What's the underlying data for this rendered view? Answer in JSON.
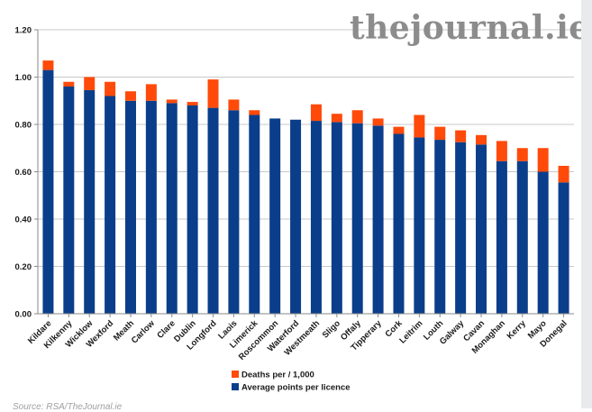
{
  "watermark": "thejournal.ie",
  "source": "Source: RSA/TheJournal.ie",
  "colors": {
    "average": "#0a3e8a",
    "deaths": "#ff4a0a",
    "grid": "#c9c9c9",
    "axis": "#8a8a8a"
  },
  "chart_data": {
    "type": "bar",
    "stacked": true,
    "categories": [
      "Kildare",
      "Kilkenny",
      "Wicklow",
      "Wexford",
      "Meath",
      "Carlow",
      "Clare",
      "Dublin",
      "Longford",
      "Laois",
      "Limerick",
      "Roscommon",
      "Waterford",
      "Westmeath",
      "Sligo",
      "Offaly",
      "Tipperary",
      "Cork",
      "Leitrim",
      "Louth",
      "Galway",
      "Cavan",
      "Monaghan",
      "Kerry",
      "Mayo",
      "Donegal"
    ],
    "series": [
      {
        "name": "Average  points per licence",
        "color": "#0a3e8a",
        "values": [
          1.03,
          0.96,
          0.945,
          0.92,
          0.9,
          0.9,
          0.89,
          0.88,
          0.87,
          0.86,
          0.84,
          0.825,
          0.82,
          0.815,
          0.81,
          0.805,
          0.795,
          0.76,
          0.745,
          0.735,
          0.725,
          0.715,
          0.645,
          0.645,
          0.6,
          0.555
        ]
      },
      {
        "name": "Deaths per / 1,000",
        "color": "#ff4a0a",
        "values": [
          0.04,
          0.02,
          0.055,
          0.06,
          0.04,
          0.07,
          0.015,
          0.015,
          0.12,
          0.045,
          0.02,
          0.0,
          0.0,
          0.07,
          0.035,
          0.055,
          0.03,
          0.03,
          0.095,
          0.055,
          0.05,
          0.04,
          0.085,
          0.055,
          0.1,
          0.07
        ]
      }
    ],
    "y_ticks": [
      "0.00",
      "0.20",
      "0.40",
      "0.60",
      "0.80",
      "1.00",
      "1.20"
    ],
    "ylim": [
      0,
      1.2
    ],
    "grid": true,
    "legend_position": "bottom"
  }
}
